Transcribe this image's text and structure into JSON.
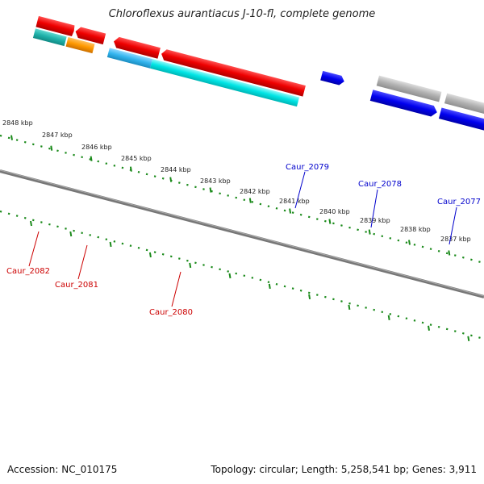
{
  "title": "Chloroflexus aurantiacus J-10-fl, complete genome",
  "footer": {
    "accession": "Accession: NC_010175",
    "summary": "Topology: circular; Length: 5,258,541 bp; Genes: 3,911"
  },
  "scale": {
    "unit": "kbp",
    "ticks": [
      "2848 kbp",
      "2847 kbp",
      "2846 kbp",
      "2845 kbp",
      "2844 kbp",
      "2843 kbp",
      "2842 kbp",
      "2841 kbp",
      "2840 kbp",
      "2839 kbp",
      "2838 kbp",
      "2837 kbp"
    ]
  },
  "gene_labels": {
    "caur_2082": "Caur_2082",
    "caur_2081": "Caur_2081",
    "caur_2080": "Caur_2080",
    "caur_2079": "Caur_2079",
    "caur_2078": "Caur_2078",
    "caur_2077": "Caur_2077"
  },
  "colors": {
    "backbone": "#777777",
    "scale_ticks": "#1a8a1a",
    "reverse_strand_label": "#cc0000",
    "forward_strand_label": "#0000cc",
    "red_gene": "#ee0000",
    "orange_gene": "#ff9900",
    "cyan_gene": "#00e5e5",
    "teal_gene": "#20b2aa",
    "blue_gene": "#0000ee",
    "grey_gene": "#b0b0b0"
  }
}
